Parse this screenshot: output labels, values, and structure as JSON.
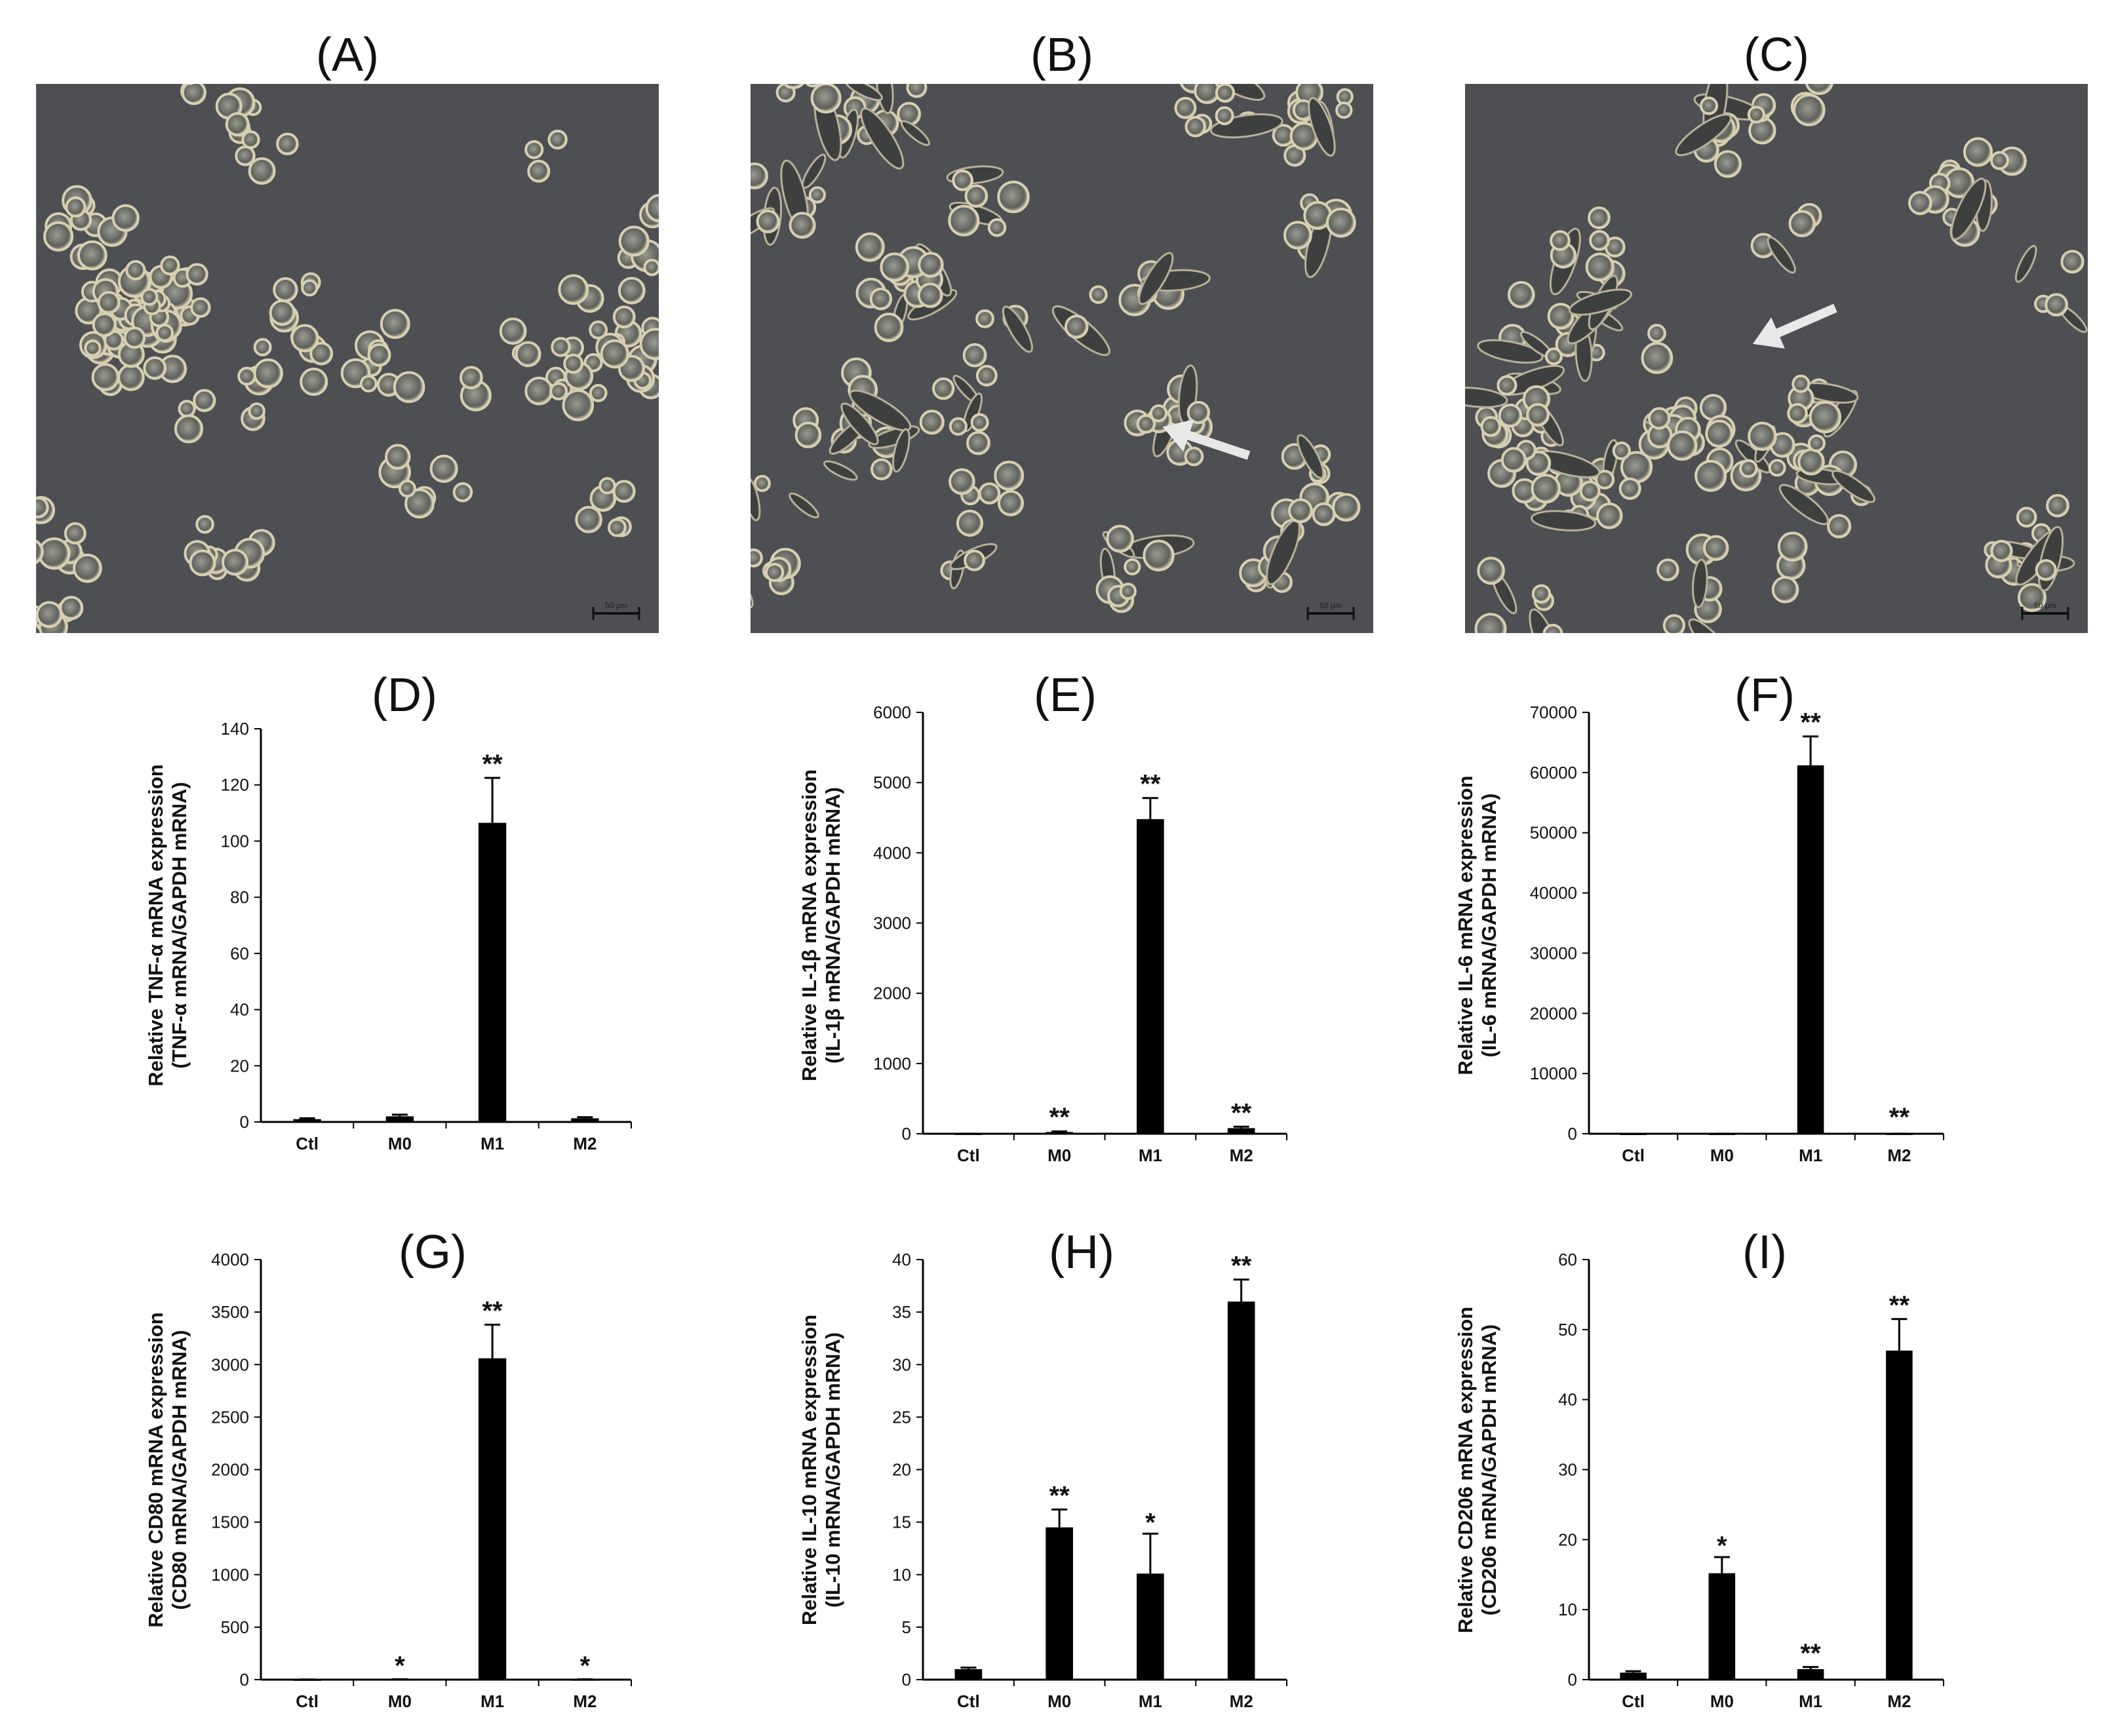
{
  "micrographs": [
    {
      "label": "(A)",
      "scale_bar": "50 μm",
      "arrow": null
    },
    {
      "label": "(B)",
      "scale_bar": "50 μm",
      "arrow": "left"
    },
    {
      "label": "(C)",
      "scale_bar": "50 μm",
      "arrow": "left"
    }
  ],
  "colors": {
    "bar": "#000000",
    "micrograph_bg": "#4d4f52",
    "cell_ring": "#d8cfb2",
    "arrow": "#e8e8e8"
  },
  "chart_data": [
    {
      "panel": "(D)",
      "type": "bar",
      "categories": [
        "Ctl",
        "M0",
        "M1",
        "M2"
      ],
      "values": [
        1,
        2,
        106.5,
        1.3
      ],
      "errors": [
        0.3,
        0.6,
        16,
        0.4
      ],
      "significance": [
        "",
        "",
        "**",
        ""
      ],
      "ylabel_lines": [
        "Relative TNF-α mRNA expression",
        "(TNF-α mRNA/GAPDH mRNA)"
      ],
      "ylim": [
        0,
        140
      ],
      "yticks": [
        0,
        20,
        40,
        60,
        80,
        100,
        120,
        140
      ]
    },
    {
      "panel": "(E)",
      "type": "bar",
      "categories": [
        "Ctl",
        "M0",
        "M1",
        "M2"
      ],
      "values": [
        1,
        25,
        4480,
        80
      ],
      "errors": [
        0.5,
        8,
        300,
        20
      ],
      "significance": [
        "",
        "**",
        "**",
        "**"
      ],
      "ylabel_lines": [
        "Relative IL-1β mRNA expression",
        "(IL-1β mRNA/GAPDH mRNA)"
      ],
      "ylim": [
        0,
        6000
      ],
      "yticks": [
        0,
        1000,
        2000,
        3000,
        4000,
        5000,
        6000
      ]
    },
    {
      "panel": "(F)",
      "type": "bar",
      "categories": [
        "Ctl",
        "M0",
        "M1",
        "M2"
      ],
      "values": [
        1,
        5,
        61200,
        10
      ],
      "errors": [
        0.5,
        2,
        4800,
        5
      ],
      "significance": [
        "",
        "",
        "**",
        "**"
      ],
      "ylabel_lines": [
        "Relative IL-6 mRNA expression",
        "(IL-6 mRNA/GAPDH mRNA)"
      ],
      "ylim": [
        0,
        70000
      ],
      "yticks": [
        0,
        10000,
        20000,
        30000,
        40000,
        50000,
        60000,
        70000
      ]
    },
    {
      "panel": "(G)",
      "type": "bar",
      "categories": [
        "Ctl",
        "M0",
        "M1",
        "M2"
      ],
      "values": [
        1,
        3,
        3060,
        2
      ],
      "errors": [
        0.5,
        1,
        320,
        1
      ],
      "significance": [
        "",
        "*",
        "**",
        "*"
      ],
      "ylabel_lines": [
        "Relative CD80 mRNA expression",
        "(CD80 mRNA/GAPDH mRNA)"
      ],
      "ylim": [
        0,
        4000
      ],
      "yticks": [
        0,
        500,
        1000,
        1500,
        2000,
        2500,
        3000,
        3500,
        4000
      ]
    },
    {
      "panel": "(H)",
      "type": "bar",
      "categories": [
        "Ctl",
        "M0",
        "M1",
        "M2"
      ],
      "values": [
        1,
        14.5,
        10.1,
        36
      ],
      "errors": [
        0.15,
        1.7,
        3.8,
        2.1
      ],
      "significance": [
        "",
        "**",
        "*",
        "**"
      ],
      "ylabel_lines": [
        "Relative IL-10 mRNA expression",
        "(IL-10 mRNA/GAPDH mRNA)"
      ],
      "ylim": [
        0,
        40
      ],
      "yticks": [
        0,
        5,
        10,
        15,
        20,
        25,
        30,
        35,
        40
      ]
    },
    {
      "panel": "(I)",
      "type": "bar",
      "categories": [
        "Ctl",
        "M0",
        "M1",
        "M2"
      ],
      "values": [
        1,
        15.2,
        1.5,
        47
      ],
      "errors": [
        0.2,
        2.3,
        0.3,
        4.5
      ],
      "significance": [
        "",
        "*",
        "**",
        "**"
      ],
      "ylabel_lines": [
        "Relative CD206 mRNA expression",
        "(CD206 mRNA/GAPDH mRNA)"
      ],
      "ylim": [
        0,
        60
      ],
      "yticks": [
        0,
        10,
        20,
        30,
        40,
        50,
        60
      ]
    }
  ]
}
